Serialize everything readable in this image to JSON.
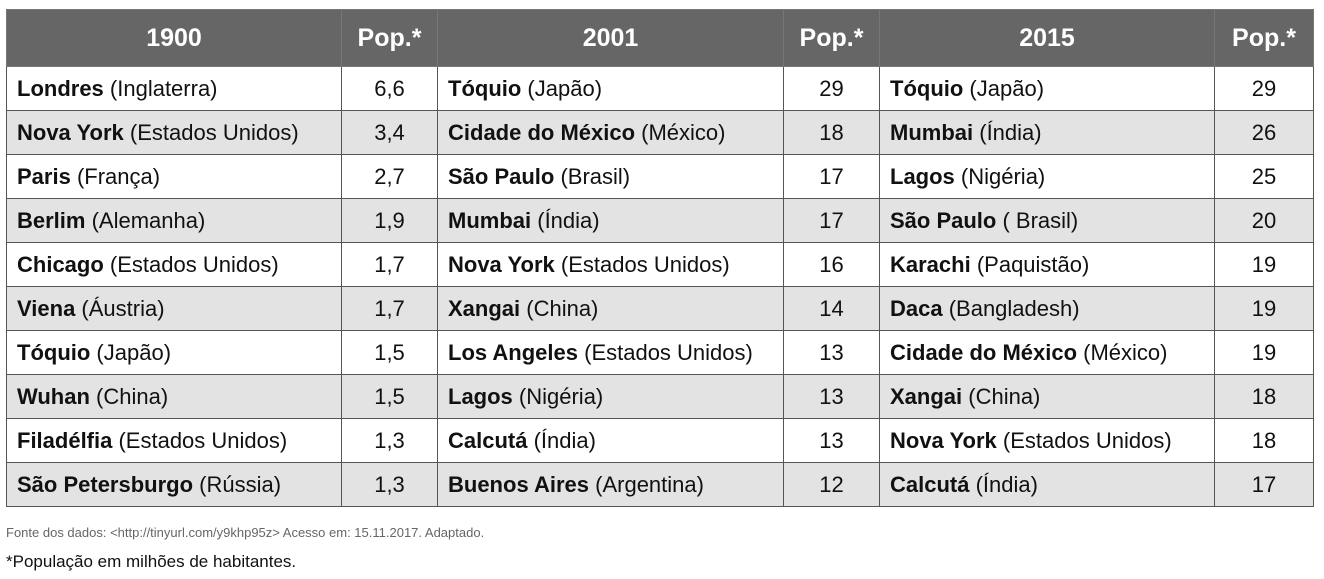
{
  "headers": {
    "y1900": "1900",
    "pop1": "Pop.*",
    "y2001": "2001",
    "pop2": "Pop.*",
    "y2015": "2015",
    "pop3": "Pop.*"
  },
  "rows": [
    {
      "c1900": {
        "name": "Londres",
        "country": " (Inglaterra)"
      },
      "p1900": "6,6",
      "c2001": {
        "name": "Tóquio",
        "country": " (Japão)"
      },
      "p2001": "29",
      "c2015": {
        "name": "Tóquio",
        "country": " (Japão)"
      },
      "p2015": "29"
    },
    {
      "c1900": {
        "name": "Nova York",
        "country": " (Estados Unidos)"
      },
      "p1900": "3,4",
      "c2001": {
        "name": "Cidade do México",
        "country": " (México)"
      },
      "p2001": "18",
      "c2015": {
        "name": "Mumbai",
        "country": " (Índia)"
      },
      "p2015": "26"
    },
    {
      "c1900": {
        "name": "Paris",
        "country": " (França)"
      },
      "p1900": "2,7",
      "c2001": {
        "name": "São Paulo",
        "country": " (Brasil)"
      },
      "p2001": "17",
      "c2015": {
        "name": "Lagos",
        "country": " (Nigéria)"
      },
      "p2015": "25"
    },
    {
      "c1900": {
        "name": "Berlim",
        "country": " (Alemanha)"
      },
      "p1900": "1,9",
      "c2001": {
        "name": "Mumbai",
        "country": " (Índia)"
      },
      "p2001": "17",
      "c2015": {
        "name": "São Paulo",
        "country": " ( Brasil)"
      },
      "p2015": "20"
    },
    {
      "c1900": {
        "name": "Chicago",
        "country": " (Estados Unidos)"
      },
      "p1900": "1,7",
      "c2001": {
        "name": "Nova York",
        "country": " (Estados Unidos)"
      },
      "p2001": "16",
      "c2015": {
        "name": "Karachi",
        "country": " (Paquistão)"
      },
      "p2015": "19"
    },
    {
      "c1900": {
        "name": "Viena",
        "country": " (Áustria)"
      },
      "p1900": "1,7",
      "c2001": {
        "name": "Xangai",
        "country": " (China)"
      },
      "p2001": "14",
      "c2015": {
        "name": "Daca",
        "country": " (Bangladesh)"
      },
      "p2015": "19"
    },
    {
      "c1900": {
        "name": "Tóquio",
        "country": " (Japão)"
      },
      "p1900": "1,5",
      "c2001": {
        "name": "Los Angeles",
        "country": " (Estados Unidos)"
      },
      "p2001": "13",
      "c2015": {
        "name": "Cidade do México",
        "country": " (México)"
      },
      "p2015": "19"
    },
    {
      "c1900": {
        "name": "Wuhan",
        "country": " (China)"
      },
      "p1900": "1,5",
      "c2001": {
        "name": "Lagos",
        "country": " (Nigéria)"
      },
      "p2001": "13",
      "c2015": {
        "name": "Xangai",
        "country": " (China)"
      },
      "p2015": "18"
    },
    {
      "c1900": {
        "name": "Filadélfia",
        "country": " (Estados Unidos)"
      },
      "p1900": "1,3",
      "c2001": {
        "name": "Calcutá",
        "country": " (Índia)"
      },
      "p2001": "13",
      "c2015": {
        "name": "Nova York",
        "country": " (Estados Unidos)"
      },
      "p2015": "18"
    },
    {
      "c1900": {
        "name": "São Petersburgo",
        "country": " (Rússia)"
      },
      "p1900": "1,3",
      "c2001": {
        "name": "Buenos Aires",
        "country": " (Argentina)"
      },
      "p2001": "12",
      "c2015": {
        "name": "Calcutá",
        "country": " (Índia)"
      },
      "p2015": "17"
    }
  ],
  "source_note": "Fonte dos dados: <http://tinyurl.com/y9khp95z>  Acesso em: 15.11.2017. Adaptado.",
  "footnote": "*População em milhões de habitantes.",
  "colors": {
    "header_bg": "#666666",
    "shaded_row": "#e3e3e3",
    "border": "#555555"
  }
}
